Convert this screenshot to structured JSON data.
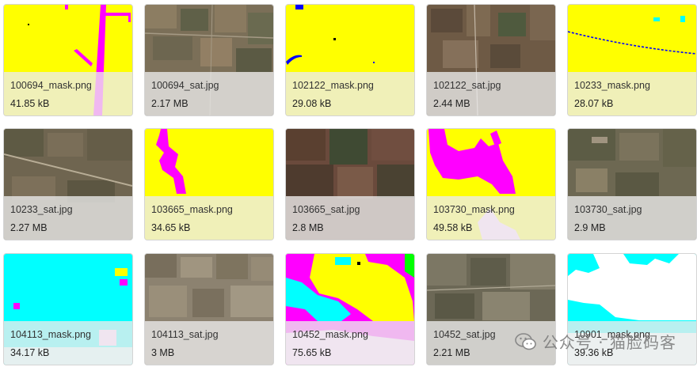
{
  "files": [
    {
      "name": "100694_mask.png",
      "size": "41.85 kB",
      "icon": "mask-thumbnail"
    },
    {
      "name": "100694_sat.jpg",
      "size": "2.17 MB",
      "icon": "satellite-thumbnail"
    },
    {
      "name": "102122_mask.png",
      "size": "29.08 kB",
      "icon": "mask-thumbnail"
    },
    {
      "name": "102122_sat.jpg",
      "size": "2.44 MB",
      "icon": "satellite-thumbnail"
    },
    {
      "name": "10233_mask.png",
      "size": "28.07 kB",
      "icon": "mask-thumbnail"
    },
    {
      "name": "10233_sat.jpg",
      "size": "2.27 MB",
      "icon": "satellite-thumbnail"
    },
    {
      "name": "103665_mask.png",
      "size": "34.65 kB",
      "icon": "mask-thumbnail"
    },
    {
      "name": "103665_sat.jpg",
      "size": "2.8 MB",
      "icon": "satellite-thumbnail"
    },
    {
      "name": "103730_mask.png",
      "size": "49.58 kB",
      "icon": "mask-thumbnail"
    },
    {
      "name": "103730_sat.jpg",
      "size": "2.9 MB",
      "icon": "satellite-thumbnail"
    },
    {
      "name": "104113_mask.png",
      "size": "34.17 kB",
      "icon": "mask-thumbnail"
    },
    {
      "name": "104113_sat.jpg",
      "size": "3 MB",
      "icon": "satellite-thumbnail"
    },
    {
      "name": "10452_mask.png",
      "size": "75.65 kB",
      "icon": "mask-thumbnail"
    },
    {
      "name": "10452_sat.jpg",
      "size": "2.21 MB",
      "icon": "satellite-thumbnail"
    },
    {
      "name": "10901_mask.png",
      "size": "39.36 kB",
      "icon": "mask-thumbnail"
    }
  ],
  "watermark": {
    "text": "公众号 · 猫脸码客",
    "icon": "wechat-icon"
  },
  "colors": {
    "mask_yellow": "#ffff00",
    "mask_magenta": "#ff00ff",
    "mask_cyan": "#00ffff",
    "mask_white": "#ffffff",
    "mask_blue": "#0000ff",
    "mask_green": "#00ff00"
  }
}
